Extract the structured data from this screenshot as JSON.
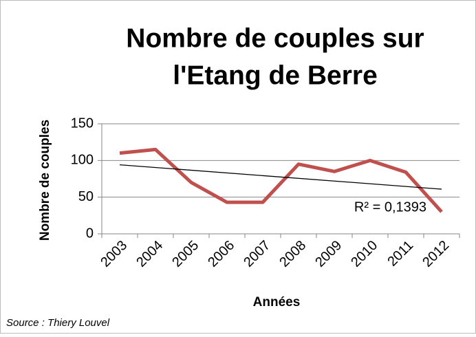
{
  "chart_data": {
    "type": "line",
    "title": [
      "Nombre de couples sur",
      "l'Etang de Berre"
    ],
    "x_label": "Années",
    "y_label": "Nombre de couples",
    "source": "Source : Thiery Louvel",
    "categories": [
      "2003",
      "2004",
      "2005",
      "2006",
      "2007",
      "2008",
      "2009",
      "2010",
      "2011",
      "2012"
    ],
    "series": [
      {
        "color": "#c0504d",
        "values": [
          110,
          115,
          70,
          43,
          43,
          95,
          85,
          100,
          84,
          30
        ]
      }
    ],
    "trendline": {
      "label": "R² = 0,1393",
      "color": "#000000"
    },
    "ylim": [
      0,
      150
    ],
    "yticks": [
      0,
      50,
      100,
      150
    ],
    "grid": true
  }
}
